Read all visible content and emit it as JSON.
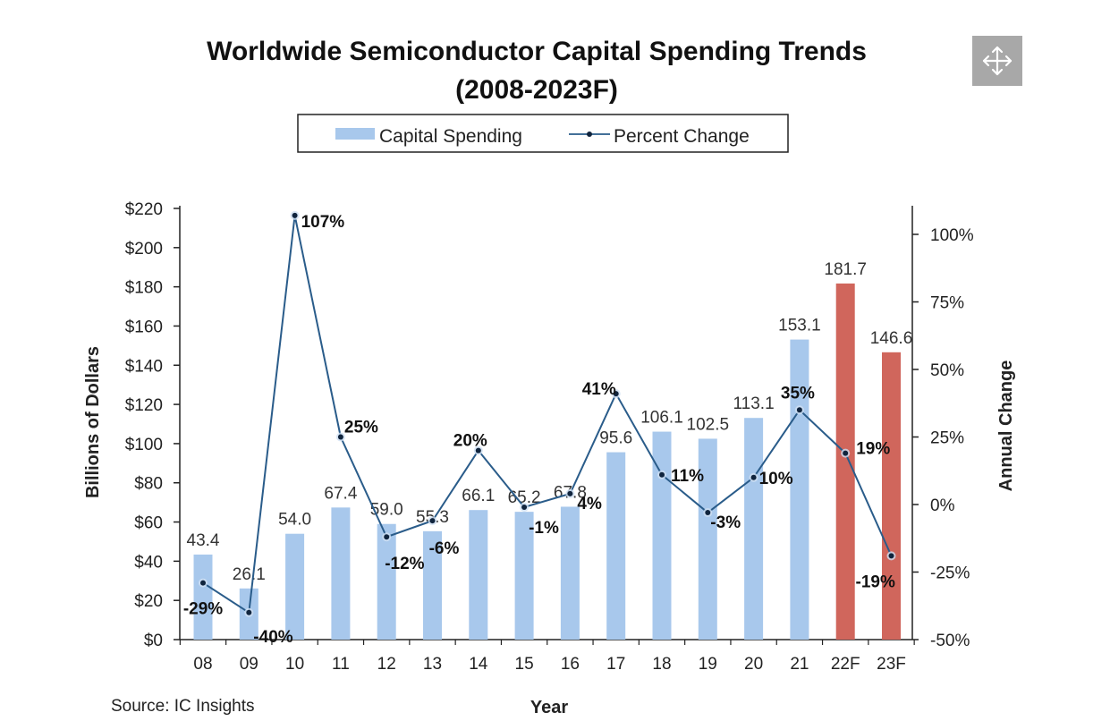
{
  "chart_data": {
    "type": "bar",
    "title_line1": "Worldwide Semiconductor Capital Spending Trends",
    "title_line2": "(2008-2023F)",
    "categories": [
      "08",
      "09",
      "10",
      "11",
      "12",
      "13",
      "14",
      "15",
      "16",
      "17",
      "18",
      "19",
      "20",
      "21",
      "22F",
      "23F"
    ],
    "series": [
      {
        "name": "Capital Spending",
        "type": "bar",
        "axis": "left",
        "values": [
          43.4,
          26.1,
          54.0,
          67.4,
          59.0,
          55.3,
          66.1,
          65.2,
          67.8,
          95.6,
          106.1,
          102.5,
          113.1,
          153.1,
          181.7,
          146.6
        ],
        "labels": [
          "43.4",
          "26.1",
          "54.0",
          "67.4",
          "59.0",
          "55.3",
          "66.1",
          "65.2",
          "67.8",
          "95.6",
          "106.1",
          "102.5",
          "113.1",
          "153.1",
          "181.7",
          "146.6"
        ],
        "color": "#a8c8ec",
        "forecast_color": "#d0665c",
        "forecast_from_index": 14
      },
      {
        "name": "Percent Change",
        "type": "line",
        "axis": "right",
        "values": [
          -29,
          -40,
          107,
          25,
          -12,
          -6,
          20,
          -1,
          4,
          41,
          11,
          -3,
          10,
          35,
          19,
          -19
        ],
        "labels": [
          "-29%",
          "-40%",
          "107%",
          "25%",
          "-12%",
          "-6%",
          "20%",
          "-1%",
          "4%",
          "41%",
          "11%",
          "-3%",
          "10%",
          "35%",
          "19%",
          "-19%"
        ],
        "color": "#2a5c8a"
      }
    ],
    "y_left": {
      "label": "Billions of Dollars",
      "min": 0,
      "max": 220,
      "ticks": [
        0,
        20,
        40,
        60,
        80,
        100,
        120,
        140,
        160,
        180,
        200,
        220
      ],
      "tick_labels": [
        "$0",
        "$20",
        "$40",
        "$60",
        "$80",
        "$100",
        "$120",
        "$140",
        "$160",
        "$180",
        "$200",
        "$220"
      ]
    },
    "y_right": {
      "label": "Annual Change",
      "min": -50,
      "max": 110,
      "ticks": [
        -50,
        -25,
        0,
        25,
        50,
        75,
        100
      ],
      "tick_labels": [
        "-50%",
        "-25%",
        "0%",
        "25%",
        "50%",
        "75%",
        "100%"
      ]
    },
    "xlabel": "Year",
    "legend": {
      "position": "top-center",
      "entries": [
        "Capital Spending",
        "Percent Change"
      ]
    },
    "source": "Source: IC Insights"
  },
  "colors": {
    "bar": "#a8c8ec",
    "forecast_bar": "#d0665c",
    "line": "#2a5c8a",
    "axis": "#222222"
  },
  "controls": {
    "move_icon": "move-arrows-icon"
  }
}
